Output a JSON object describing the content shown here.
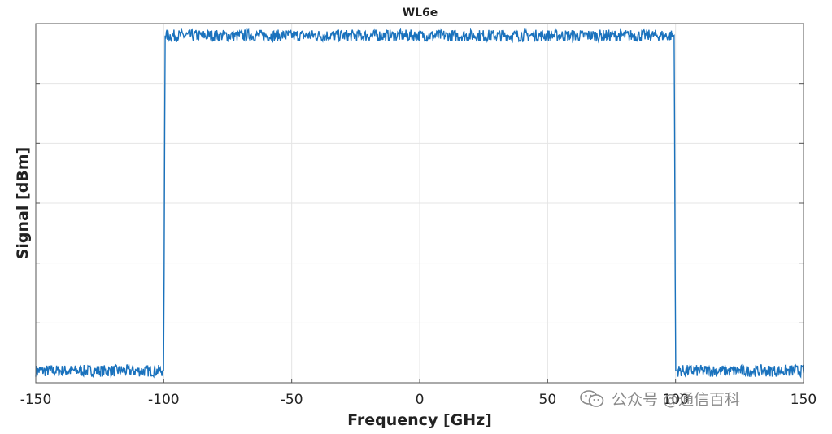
{
  "chart_data": {
    "type": "line",
    "title": "WL6e",
    "xlabel": "Frequency [GHz]",
    "ylabel": "Signal [dBm]",
    "xlim": [
      -150,
      150
    ],
    "ylim": [
      -60,
      0
    ],
    "x_ticks": [
      -150,
      -100,
      -50,
      0,
      50,
      100,
      150
    ],
    "x_tick_labels": [
      "-150",
      "-100",
      "-50",
      "0",
      "50",
      "100",
      "150"
    ],
    "y_tick_count": 6,
    "grid": true,
    "series": [
      {
        "color": "#1a72bd",
        "x": [
          -150,
          -100.5,
          -100,
          -99.5,
          99.5,
          100,
          100.5,
          150
        ],
        "values": [
          -58,
          -58,
          -58,
          -2,
          -2,
          -58,
          -58,
          -58
        ],
        "noise_amplitude": 1.0
      }
    ]
  },
  "watermark": {
    "text": "公众号 @通信百科"
  },
  "colors": {
    "line": "#1a72bd",
    "grid": "#e4e4e4",
    "axes": "#555555"
  }
}
